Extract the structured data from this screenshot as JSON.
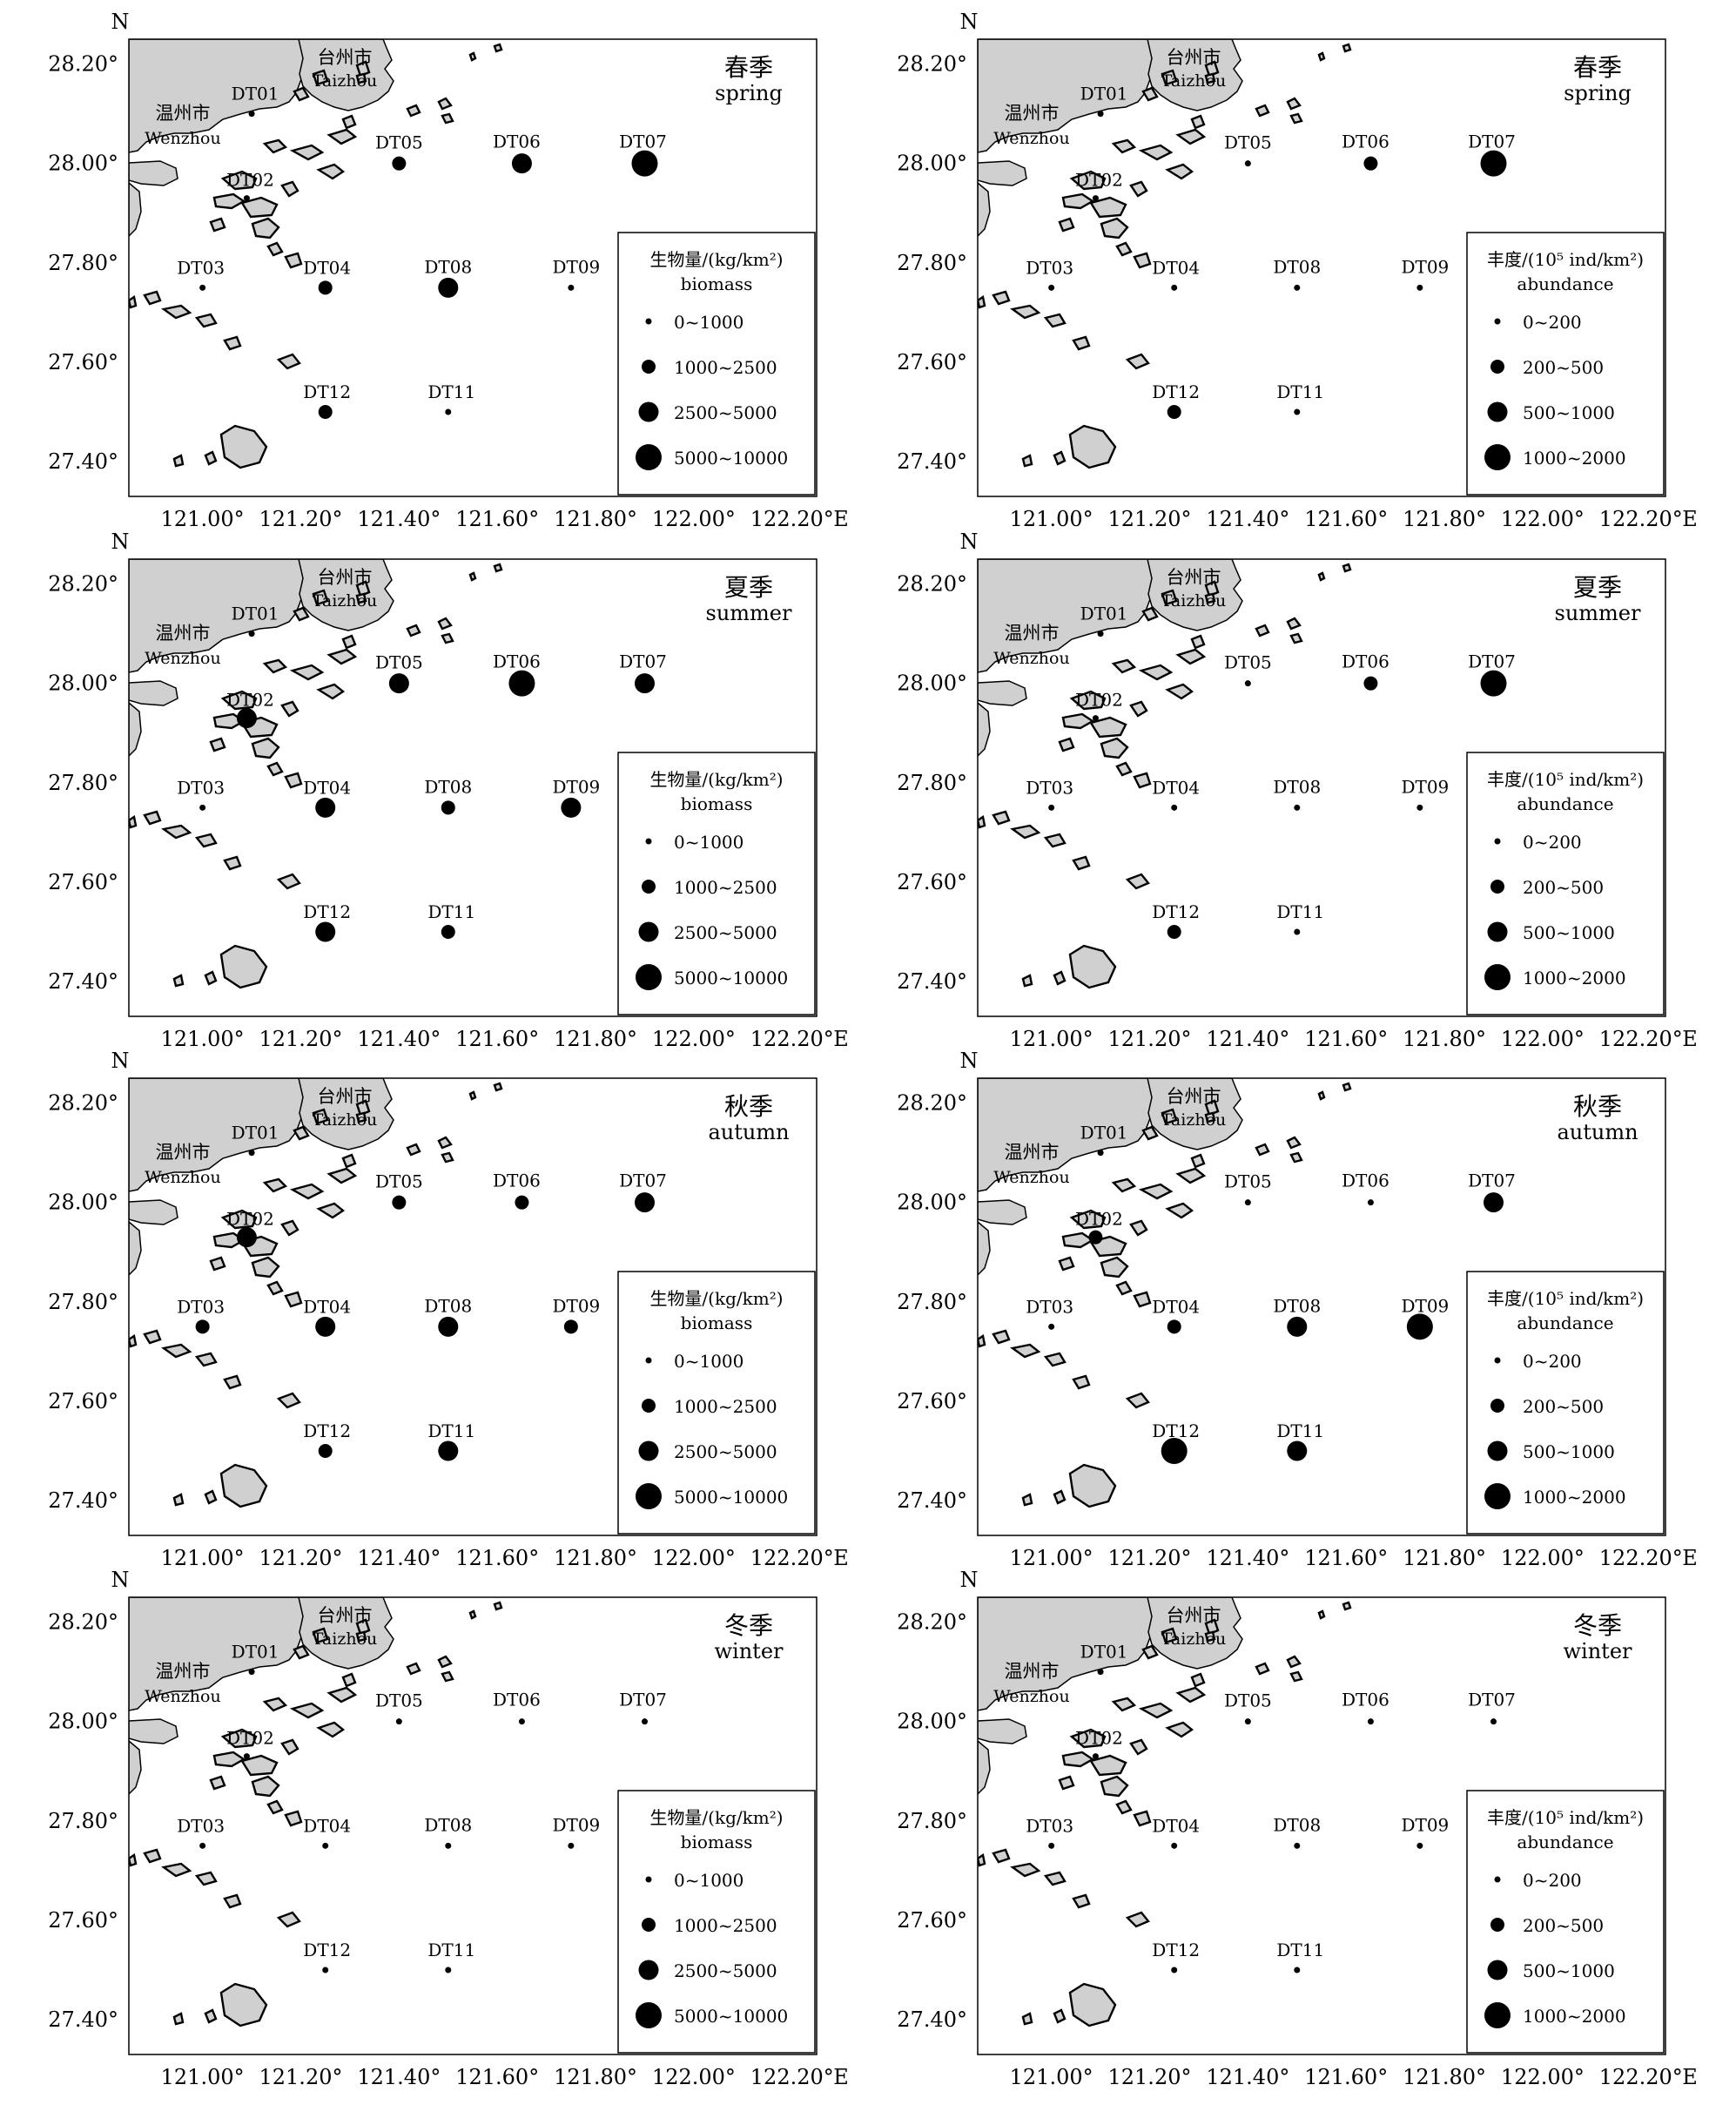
{
  "axes": {
    "north_label": "N",
    "east_label": "E",
    "lat_ticks": [
      "28.20°",
      "28.00°",
      "27.80°",
      "27.60°",
      "27.40°"
    ],
    "lat_values": [
      28.2,
      28.0,
      27.8,
      27.6,
      27.4
    ],
    "lon_ticks": [
      "121.00°",
      "121.20°",
      "121.40°",
      "121.60°",
      "121.80°",
      "122.00°",
      "122.20°"
    ],
    "lon_values": [
      121.0,
      121.2,
      121.4,
      121.6,
      121.8,
      122.0,
      122.2
    ],
    "lon_range": [
      120.85,
      122.25
    ],
    "lat_range": [
      27.33,
      28.25
    ]
  },
  "places": [
    {
      "cn": "温州市",
      "en": "Wenzhou"
    },
    {
      "cn": "台州市",
      "en": "Taizhou"
    }
  ],
  "colors": {
    "land": "#d0d0d0",
    "coast": "#000000",
    "sea": "#ffffff",
    "marker": "#000000"
  },
  "stations": [
    {
      "id": "DT01",
      "lon": 121.1,
      "lat": 28.1
    },
    {
      "id": "DT02",
      "lon": 121.09,
      "lat": 27.93
    },
    {
      "id": "DT03",
      "lon": 121.0,
      "lat": 27.75
    },
    {
      "id": "DT04",
      "lon": 121.25,
      "lat": 27.75
    },
    {
      "id": "DT05",
      "lon": 121.4,
      "lat": 28.0
    },
    {
      "id": "DT06",
      "lon": 121.65,
      "lat": 28.0
    },
    {
      "id": "DT07",
      "lon": 121.9,
      "lat": 28.0
    },
    {
      "id": "DT08",
      "lon": 121.5,
      "lat": 27.75
    },
    {
      "id": "DT09",
      "lon": 121.75,
      "lat": 27.75
    },
    {
      "id": "DT11",
      "lon": 121.5,
      "lat": 27.5
    },
    {
      "id": "DT12",
      "lon": 121.25,
      "lat": 27.5
    }
  ],
  "legends": {
    "biomass": {
      "title_cn": "生物量/(kg/km²)",
      "title_en": "biomass",
      "classes": [
        "0~1000",
        "1000~2500",
        "2500~5000",
        "5000~10000"
      ]
    },
    "abundance": {
      "title_cn": "丰度/(10⁵ ind/km²)",
      "title_en": "abundance",
      "classes": [
        "0~200",
        "200~500",
        "500~1000",
        "1000~2000"
      ]
    }
  },
  "chart_data": [
    {
      "type": "scatter",
      "variable": "biomass",
      "season_cn": "春季",
      "season_en": "spring",
      "class_index": {
        "DT01": 0,
        "DT02": 0,
        "DT03": 0,
        "DT04": 1,
        "DT05": 1,
        "DT06": 2,
        "DT07": 3,
        "DT08": 2,
        "DT09": 0,
        "DT11": 0,
        "DT12": 1
      }
    },
    {
      "type": "scatter",
      "variable": "abundance",
      "season_cn": "春季",
      "season_en": "spring",
      "class_index": {
        "DT01": 0,
        "DT02": 0,
        "DT03": 0,
        "DT04": 0,
        "DT05": 0,
        "DT06": 1,
        "DT07": 3,
        "DT08": 0,
        "DT09": 0,
        "DT11": 0,
        "DT12": 1
      }
    },
    {
      "type": "scatter",
      "variable": "biomass",
      "season_cn": "夏季",
      "season_en": "summer",
      "class_index": {
        "DT01": 0,
        "DT02": 2,
        "DT03": 0,
        "DT04": 2,
        "DT05": 2,
        "DT06": 3,
        "DT07": 2,
        "DT08": 1,
        "DT09": 2,
        "DT11": 1,
        "DT12": 2
      }
    },
    {
      "type": "scatter",
      "variable": "abundance",
      "season_cn": "夏季",
      "season_en": "summer",
      "class_index": {
        "DT01": 0,
        "DT02": 0,
        "DT03": 0,
        "DT04": 0,
        "DT05": 0,
        "DT06": 1,
        "DT07": 3,
        "DT08": 0,
        "DT09": 0,
        "DT11": 0,
        "DT12": 1
      }
    },
    {
      "type": "scatter",
      "variable": "biomass",
      "season_cn": "秋季",
      "season_en": "autumn",
      "class_index": {
        "DT01": 0,
        "DT02": 2,
        "DT03": 1,
        "DT04": 2,
        "DT05": 1,
        "DT06": 1,
        "DT07": 2,
        "DT08": 2,
        "DT09": 1,
        "DT11": 2,
        "DT12": 1
      }
    },
    {
      "type": "scatter",
      "variable": "abundance",
      "season_cn": "秋季",
      "season_en": "autumn",
      "class_index": {
        "DT01": 0,
        "DT02": 1,
        "DT03": 0,
        "DT04": 1,
        "DT05": 0,
        "DT06": 0,
        "DT07": 2,
        "DT08": 2,
        "DT09": 3,
        "DT11": 2,
        "DT12": 3
      }
    },
    {
      "type": "scatter",
      "variable": "biomass",
      "season_cn": "冬季",
      "season_en": "winter",
      "class_index": {
        "DT01": 0,
        "DT02": 0,
        "DT03": 0,
        "DT04": 0,
        "DT05": 0,
        "DT06": 0,
        "DT07": 0,
        "DT08": 0,
        "DT09": 0,
        "DT11": 0,
        "DT12": 0
      }
    },
    {
      "type": "scatter",
      "variable": "abundance",
      "season_cn": "冬季",
      "season_en": "winter",
      "class_index": {
        "DT01": 0,
        "DT02": 0,
        "DT03": 0,
        "DT04": 0,
        "DT05": 0,
        "DT06": 0,
        "DT07": 0,
        "DT08": 0,
        "DT09": 0,
        "DT11": 0,
        "DT12": 0
      }
    }
  ]
}
